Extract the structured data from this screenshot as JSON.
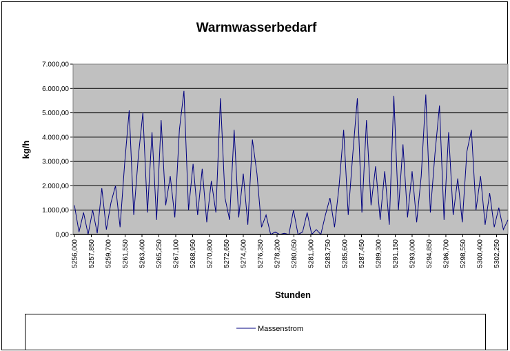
{
  "chart_data": {
    "type": "line",
    "title": "Warmwasserbedarf",
    "x_label": "Stunden",
    "y_label": "kg/h",
    "legend_position": "bottom",
    "grid": true,
    "xlim": [
      5256,
      5303.5
    ],
    "ylim": [
      0,
      7000
    ],
    "yticks": [
      {
        "value": 0,
        "label": "0,00"
      },
      {
        "value": 1000,
        "label": "1.000,00"
      },
      {
        "value": 2000,
        "label": "2.000,00"
      },
      {
        "value": 3000,
        "label": "3.000,00"
      },
      {
        "value": 4000,
        "label": "4.000,00"
      },
      {
        "value": 5000,
        "label": "5.000,00"
      },
      {
        "value": 6000,
        "label": "6.000,00"
      },
      {
        "value": 7000,
        "label": "7.000,00"
      }
    ],
    "xticks": [
      {
        "value": 5256,
        "label": "5256,000"
      },
      {
        "value": 5257.85,
        "label": "5257,850"
      },
      {
        "value": 5259.7,
        "label": "5259,700"
      },
      {
        "value": 5261.55,
        "label": "5261,550"
      },
      {
        "value": 5263.4,
        "label": "5263,400"
      },
      {
        "value": 5265.25,
        "label": "5265,250"
      },
      {
        "value": 5267.1,
        "label": "5267,100"
      },
      {
        "value": 5268.95,
        "label": "5268,950"
      },
      {
        "value": 5270.8,
        "label": "5270,800"
      },
      {
        "value": 5272.65,
        "label": "5272,650"
      },
      {
        "value": 5274.5,
        "label": "5274,500"
      },
      {
        "value": 5276.35,
        "label": "5276,350"
      },
      {
        "value": 5278.2,
        "label": "5278,200"
      },
      {
        "value": 5280.05,
        "label": "5280,050"
      },
      {
        "value": 5281.9,
        "label": "5281,900"
      },
      {
        "value": 5283.75,
        "label": "5283,750"
      },
      {
        "value": 5285.6,
        "label": "5285,600"
      },
      {
        "value": 5287.45,
        "label": "5287,450"
      },
      {
        "value": 5289.3,
        "label": "5289,300"
      },
      {
        "value": 5291.15,
        "label": "5291,150"
      },
      {
        "value": 5293,
        "label": "5293,000"
      },
      {
        "value": 5294.85,
        "label": "5294,850"
      },
      {
        "value": 5296.7,
        "label": "5296,700"
      },
      {
        "value": 5298.55,
        "label": "5298,550"
      },
      {
        "value": 5300.4,
        "label": "5300,400"
      },
      {
        "value": 5302.25,
        "label": "5302,250"
      }
    ],
    "x": [
      5256,
      5256.5,
      5257,
      5257.5,
      5258,
      5258.5,
      5259,
      5259.5,
      5260,
      5260.5,
      5261,
      5261.5,
      5262,
      5262.5,
      5263,
      5263.5,
      5264,
      5264.5,
      5265,
      5265.5,
      5266,
      5266.5,
      5267,
      5267.5,
      5268,
      5268.5,
      5269,
      5269.5,
      5270,
      5270.5,
      5271,
      5271.5,
      5272,
      5272.5,
      5273,
      5273.5,
      5274,
      5274.5,
      5275,
      5275.5,
      5276,
      5276.5,
      5277,
      5277.5,
      5278,
      5278.5,
      5279,
      5279.5,
      5280,
      5280.5,
      5281,
      5281.5,
      5282,
      5282.5,
      5283,
      5283.5,
      5284,
      5284.5,
      5285,
      5285.5,
      5286,
      5286.5,
      5287,
      5287.5,
      5288,
      5288.5,
      5289,
      5289.5,
      5290,
      5290.5,
      5291,
      5291.5,
      5292,
      5292.5,
      5293,
      5293.5,
      5294,
      5294.5,
      5295,
      5295.5,
      5296,
      5296.5,
      5297,
      5297.5,
      5298,
      5298.5,
      5299,
      5299.5,
      5300,
      5300.5,
      5301,
      5301.5,
      5302,
      5302.5,
      5303,
      5303.5
    ],
    "series": [
      {
        "name": "Massenstrom",
        "color": "#000080",
        "values": [
          1200,
          100,
          900,
          0,
          1000,
          50,
          1900,
          200,
          1300,
          2000,
          300,
          2900,
          5100,
          800,
          3200,
          5000,
          900,
          4200,
          600,
          4700,
          1200,
          2400,
          700,
          4300,
          5900,
          1000,
          2900,
          800,
          2700,
          500,
          2200,
          900,
          5600,
          1500,
          600,
          4300,
          700,
          2500,
          400,
          3900,
          2500,
          300,
          800,
          0,
          100,
          0,
          50,
          0,
          1000,
          0,
          100,
          900,
          0,
          200,
          0,
          800,
          1500,
          300,
          2000,
          4300,
          800,
          3300,
          5600,
          900,
          4700,
          1200,
          2800,
          600,
          2600,
          400,
          5700,
          1000,
          3700,
          700,
          2600,
          500,
          2400,
          5750,
          900,
          3300,
          5300,
          600,
          4200,
          800,
          2300,
          500,
          3400,
          4300,
          1000,
          2400,
          400,
          1700,
          300,
          1100,
          200,
          600
        ]
      }
    ]
  }
}
